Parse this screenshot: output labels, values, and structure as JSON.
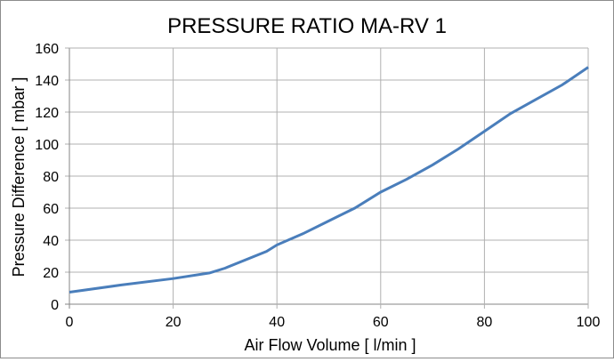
{
  "chart_data": {
    "type": "line",
    "title": "PRESSURE RATIO MA-RV 1",
    "xlabel": "Air Flow Volume [ l/min ]",
    "ylabel": "Pressure Difference [ mbar ]",
    "xlim": [
      0,
      100
    ],
    "ylim": [
      0,
      160
    ],
    "xticks": [
      0,
      20,
      40,
      60,
      80,
      100
    ],
    "yticks": [
      0,
      20,
      40,
      60,
      80,
      100,
      120,
      140,
      160
    ],
    "grid": true,
    "line_color": "#4a7ebb",
    "series": [
      {
        "x": [
          0,
          10,
          20,
          27,
          30,
          38,
          40,
          45,
          50,
          55,
          60,
          65,
          70,
          75,
          80,
          85,
          90,
          95,
          100
        ],
        "y": [
          7.5,
          12,
          16,
          19.5,
          22.5,
          33,
          37,
          44,
          52,
          60,
          70,
          78,
          87,
          97,
          108,
          119,
          128,
          137,
          148
        ]
      }
    ]
  }
}
